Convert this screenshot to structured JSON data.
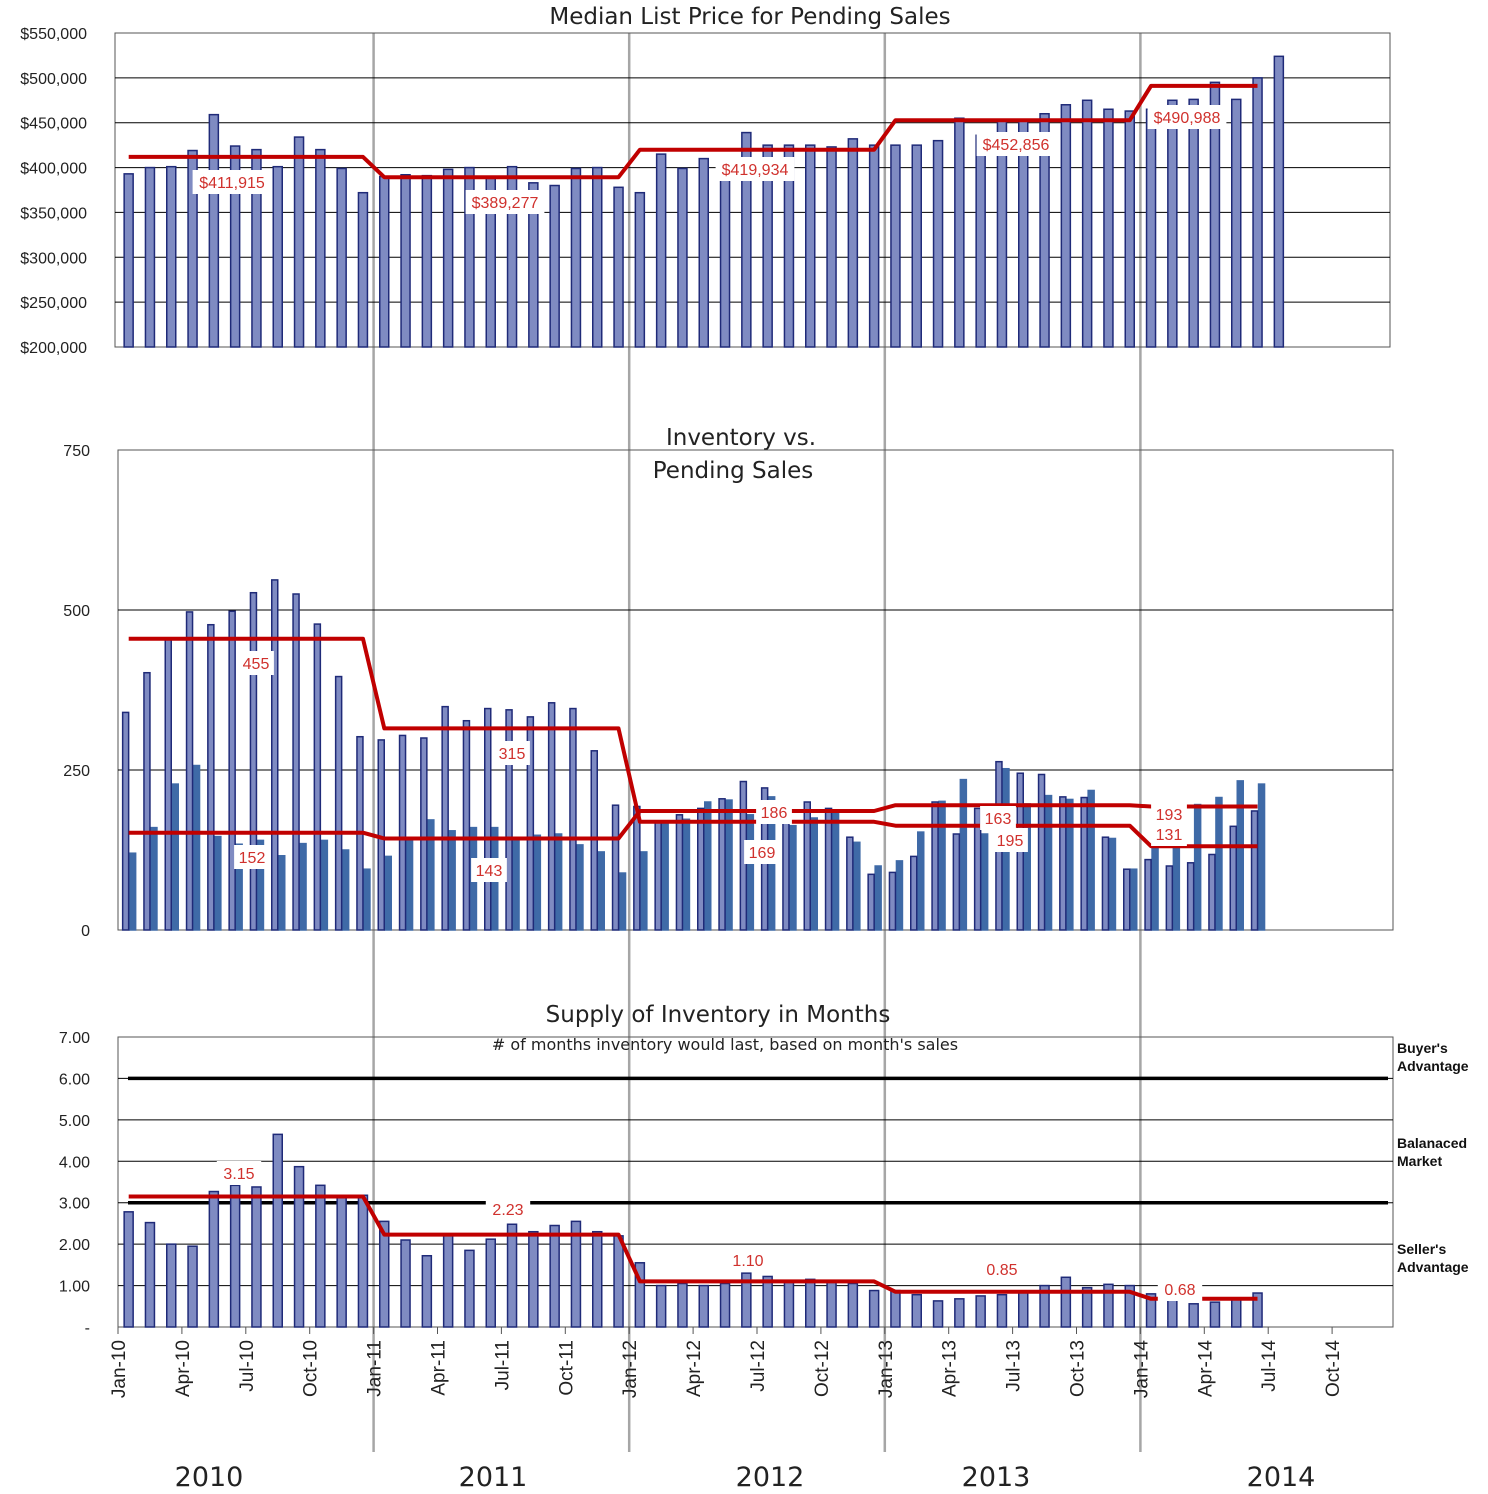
{
  "colors": {
    "bar_fill": "#7f8bc2",
    "bar_stroke": "#1f2a78",
    "pending_fill": "#3f6aa7",
    "average_line": "#c00000",
    "threshold_line": "#000000",
    "grid": "#000000",
    "year_divider": "#a6a6a6",
    "label_text": "#d0312d"
  },
  "x_axis": {
    "months": [
      "Jan-10",
      "Feb-10",
      "Mar-10",
      "Apr-10",
      "May-10",
      "Jun-10",
      "Jul-10",
      "Aug-10",
      "Sep-10",
      "Oct-10",
      "Nov-10",
      "Dec-10",
      "Jan-11",
      "Feb-11",
      "Mar-11",
      "Apr-11",
      "May-11",
      "Jun-11",
      "Jul-11",
      "Aug-11",
      "Sep-11",
      "Oct-11",
      "Nov-11",
      "Dec-11",
      "Jan-12",
      "Feb-12",
      "Mar-12",
      "Apr-12",
      "May-12",
      "Jun-12",
      "Jul-12",
      "Aug-12",
      "Sep-12",
      "Oct-12",
      "Nov-12",
      "Dec-12",
      "Jan-13",
      "Feb-13",
      "Mar-13",
      "Apr-13",
      "May-13",
      "Jun-13",
      "Jul-13",
      "Aug-13",
      "Sep-13",
      "Oct-13",
      "Nov-13",
      "Dec-13",
      "Jan-14",
      "Feb-14",
      "Mar-14",
      "Apr-14",
      "May-14",
      "Jun-14",
      "Jul-14",
      "Aug-14",
      "Sep-14",
      "Oct-14",
      "Nov-14",
      "Dec-14"
    ],
    "tick_labels": [
      "Jan-10",
      "Apr-10",
      "Jul-10",
      "Oct-10",
      "Jan-11",
      "Apr-11",
      "Jul-11",
      "Oct-11",
      "Jan-12",
      "Apr-12",
      "Jul-12",
      "Oct-12",
      "Jan-13",
      "Apr-13",
      "Jul-13",
      "Oct-13",
      "Jan-14",
      "Apr-14",
      "Jul-14",
      "Oct-14"
    ],
    "years": [
      "2010",
      "2011",
      "2012",
      "2013",
      "2014"
    ]
  },
  "chart_data": [
    {
      "type": "bar",
      "title": "Median List Price for Pending Sales",
      "y_tick_labels": [
        "$200,000",
        "$250,000",
        "$300,000",
        "$350,000",
        "$400,000",
        "$450,000",
        "$500,000",
        "$550,000"
      ],
      "ylim": [
        200000,
        550000
      ],
      "grid": true,
      "series": [
        {
          "kind": "bar",
          "values": [
            393000,
            400000,
            401000,
            419000,
            459000,
            424000,
            420000,
            401000,
            434000,
            420000,
            399000,
            372000,
            390000,
            392000,
            391000,
            398000,
            400000,
            388000,
            401000,
            383000,
            380000,
            399000,
            400000,
            378000,
            372000,
            415000,
            399000,
            410000,
            398000,
            439000,
            425000,
            425000,
            425000,
            423000,
            432000,
            425000,
            425000,
            425000,
            430000,
            455000,
            436000,
            452000,
            453000,
            460000,
            470000,
            475000,
            465000,
            463000,
            465000,
            475000,
            476000,
            495000,
            476000,
            500000,
            524000
          ]
        },
        {
          "kind": "average-line",
          "segments": [
            {
              "from": 0,
              "to": 11,
              "value": 411915,
              "label": "$411,915"
            },
            {
              "from": 12,
              "to": 23,
              "value": 389277,
              "label": "$389,277"
            },
            {
              "from": 24,
              "to": 35,
              "value": 419934,
              "label": "$419,934"
            },
            {
              "from": 36,
              "to": 47,
              "value": 452856,
              "label": "$452,856"
            },
            {
              "from": 48,
              "to": 53,
              "value": 490988,
              "label": "$490,988"
            }
          ]
        }
      ]
    },
    {
      "type": "bar",
      "title_lines": [
        "Inventory vs.",
        "Pending Sales"
      ],
      "y_tick_labels": [
        "0",
        "250",
        "500",
        "750"
      ],
      "ylim": [
        0,
        750
      ],
      "grid": true,
      "series": [
        {
          "kind": "bar",
          "values": [
            340,
            402,
            455,
            497,
            477,
            498,
            527,
            547,
            525,
            478,
            396,
            302,
            297,
            304,
            300,
            349,
            327,
            346,
            344,
            333,
            355,
            346,
            280,
            195,
            193,
            170,
            180,
            190,
            205,
            232,
            222,
            200,
            200,
            190,
            145,
            87,
            90,
            115,
            200,
            150,
            190,
            263,
            245,
            243,
            208,
            207,
            145,
            95,
            110,
            100,
            105,
            118,
            162,
            186,
            0
          ]
        },
        {
          "kind": "bar-pending",
          "values": [
            120,
            160,
            228,
            257,
            146,
            134,
            140,
            116,
            135,
            140,
            125,
            95,
            115,
            140,
            172,
            155,
            160,
            160,
            140,
            148,
            150,
            133,
            122,
            89,
            122,
            170,
            173,
            200,
            203,
            180,
            208,
            163,
            175,
            183,
            137,
            100,
            108,
            153,
            201,
            235,
            150,
            252,
            197,
            210,
            204,
            218,
            143,
            95,
            128,
            160,
            196,
            207,
            233,
            228,
            0
          ]
        },
        {
          "kind": "average-line",
          "name": "inventory",
          "segments": [
            {
              "from": 0,
              "to": 11,
              "value": 455,
              "label": "455"
            },
            {
              "from": 12,
              "to": 23,
              "value": 315,
              "label": "315"
            },
            {
              "from": 24,
              "to": 35,
              "value": 169,
              "label": "169"
            },
            {
              "from": 36,
              "to": 47,
              "value": 163,
              "label": "163"
            },
            {
              "from": 48,
              "to": 53,
              "value": 131,
              "label": "131"
            }
          ]
        },
        {
          "kind": "average-line",
          "name": "pending",
          "segments": [
            {
              "from": 0,
              "to": 11,
              "value": 152,
              "label": "152"
            },
            {
              "from": 12,
              "to": 23,
              "value": 143,
              "label": "143"
            },
            {
              "from": 24,
              "to": 35,
              "value": 186,
              "label": "186"
            },
            {
              "from": 36,
              "to": 47,
              "value": 195,
              "label": "195"
            },
            {
              "from": 48,
              "to": 53,
              "value": 193,
              "label": "193"
            }
          ]
        }
      ]
    },
    {
      "type": "bar",
      "title": "Supply of Inventory in Months",
      "subtitle": "# of months inventory would last, based on month's sales",
      "y_tick_labels": [
        "-",
        "1.00",
        "2.00",
        "3.00",
        "4.00",
        "5.00",
        "6.00",
        "7.00"
      ],
      "ylim": [
        0,
        7
      ],
      "grid": true,
      "thresholds": [
        3,
        6
      ],
      "zones": [
        {
          "lines": [
            "Buyer's",
            "Advantage"
          ]
        },
        {
          "lines": [
            "Balanaced",
            "Market"
          ]
        },
        {
          "lines": [
            "Seller's",
            "Advantage"
          ]
        }
      ],
      "series": [
        {
          "kind": "bar",
          "values": [
            2.78,
            2.52,
            2.0,
            1.95,
            3.27,
            3.42,
            3.38,
            4.65,
            3.87,
            3.42,
            3.12,
            3.18,
            2.55,
            2.1,
            1.72,
            2.22,
            1.85,
            2.12,
            2.48,
            2.3,
            2.45,
            2.55,
            2.3,
            2.2,
            1.55,
            1.0,
            1.05,
            1.0,
            1.05,
            1.3,
            1.22,
            1.12,
            1.15,
            1.1,
            1.05,
            0.88,
            0.88,
            0.78,
            0.63,
            0.68,
            0.75,
            0.78,
            0.85,
            1.0,
            1.2,
            0.95,
            1.03,
            1.0,
            0.8,
            0.66,
            0.56,
            0.6,
            0.68,
            0.82
          ]
        },
        {
          "kind": "average-line",
          "segments": [
            {
              "from": 0,
              "to": 11,
              "value": 3.15,
              "label": "3.15"
            },
            {
              "from": 12,
              "to": 23,
              "value": 2.23,
              "label": "2.23"
            },
            {
              "from": 24,
              "to": 35,
              "value": 1.1,
              "label": "1.10"
            },
            {
              "from": 36,
              "to": 47,
              "value": 0.85,
              "label": "0.85"
            },
            {
              "from": 48,
              "to": 53,
              "value": 0.68,
              "label": "0.68"
            }
          ]
        }
      ]
    }
  ]
}
